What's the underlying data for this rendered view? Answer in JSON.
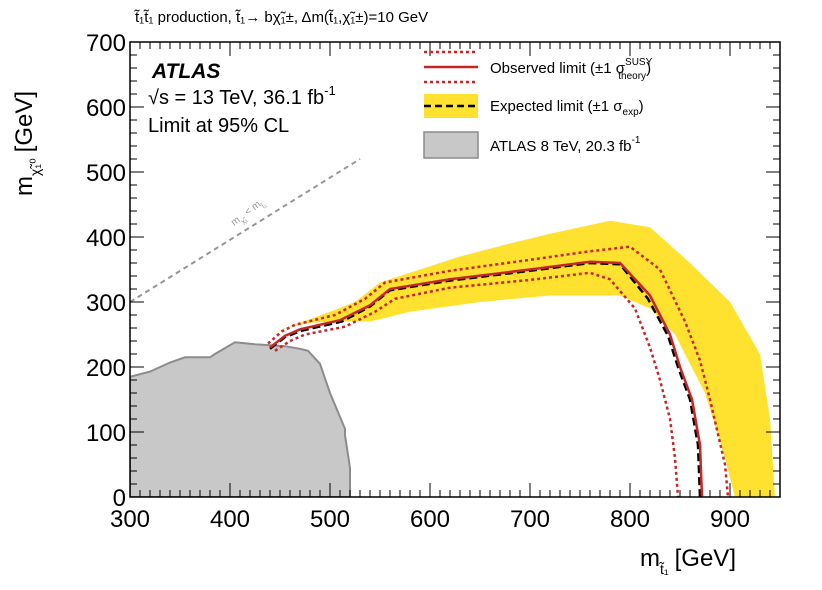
{
  "header": {
    "process_text": "t̃₁t̃₁ production, t̃₁→ bχ̃₁±, Δm(t̃₁,χ̃₁±)=10 GeV"
  },
  "labels": {
    "atlas": "ATLAS",
    "energy": "√s = 13 TeV, 36.1 fb",
    "energy_sup": "-1",
    "cl": "Limit at 95% CL",
    "diagonal": "m",
    "diagonal_rest": " < m",
    "diagonal_sub1": "χ̃₁",
    "diagonal_sub2": "t̃₁"
  },
  "colors": {
    "observed": "#c62626",
    "observed_band": "#c62626",
    "expected": "#000000",
    "expected_band": "#ffe12f",
    "previous_fill": "#c8c8c8",
    "previous_edge": "#8c8c8c",
    "diagonal": "#969696"
  },
  "chart_data": {
    "type": "contour",
    "xlabel": "m",
    "xlabel_sub": "t̃₁",
    "xlabel_unit": "[GeV]",
    "ylabel": "m",
    "ylabel_sub": "χ̃₁⁰",
    "ylabel_unit": "[GeV]",
    "xlim": [
      300,
      950
    ],
    "ylim": [
      0,
      700
    ],
    "xticks": [
      300,
      400,
      500,
      600,
      700,
      800,
      900
    ],
    "yticks": [
      0,
      100,
      200,
      300,
      400,
      500,
      600,
      700
    ],
    "legend": {
      "position": "top-right",
      "entries": [
        {
          "key": "observed",
          "label": "Observed limit (±1 σ",
          "sup": "SUSY",
          "sub": "theory",
          "tail": ")"
        },
        {
          "key": "expected",
          "label": "Expected limit (±1 σ",
          "sub": "exp",
          "tail": ")"
        },
        {
          "key": "previous",
          "label": "ATLAS 8 TeV, 20.3 fb",
          "sup": "-1",
          "tail": ""
        }
      ]
    },
    "diagonal_line": [
      [
        300,
        300
      ],
      [
        530,
        520
      ]
    ],
    "previous_exclusion": [
      [
        300,
        0
      ],
      [
        300,
        185
      ],
      [
        320,
        193
      ],
      [
        340,
        207
      ],
      [
        355,
        215
      ],
      [
        380,
        215
      ],
      [
        385,
        220
      ],
      [
        405,
        238
      ],
      [
        425,
        235
      ],
      [
        455,
        232
      ],
      [
        470,
        228
      ],
      [
        478,
        225
      ],
      [
        490,
        205
      ],
      [
        500,
        160
      ],
      [
        515,
        105
      ],
      [
        515,
        95
      ],
      [
        520,
        45
      ],
      [
        520,
        0
      ]
    ],
    "expected_band": [
      [
        420,
        230
      ],
      [
        440,
        250
      ],
      [
        465,
        265
      ],
      [
        500,
        285
      ],
      [
        525,
        300
      ],
      [
        550,
        330
      ],
      [
        580,
        345
      ],
      [
        630,
        370
      ],
      [
        680,
        390
      ],
      [
        720,
        405
      ],
      [
        780,
        425
      ],
      [
        820,
        415
      ],
      [
        860,
        360
      ],
      [
        900,
        300
      ],
      [
        930,
        220
      ],
      [
        940,
        120
      ],
      [
        945,
        0
      ],
      [
        905,
        0
      ],
      [
        895,
        60
      ],
      [
        875,
        160
      ],
      [
        845,
        250
      ],
      [
        820,
        290
      ],
      [
        790,
        310
      ],
      [
        720,
        310
      ],
      [
        650,
        300
      ],
      [
        580,
        285
      ],
      [
        540,
        270
      ],
      [
        510,
        270
      ],
      [
        480,
        268
      ],
      [
        455,
        260
      ],
      [
        440,
        250
      ]
    ],
    "observed": [
      [
        440,
        230
      ],
      [
        455,
        248
      ],
      [
        470,
        258
      ],
      [
        510,
        272
      ],
      [
        540,
        295
      ],
      [
        560,
        320
      ],
      [
        620,
        335
      ],
      [
        700,
        350
      ],
      [
        760,
        362
      ],
      [
        790,
        360
      ],
      [
        820,
        310
      ],
      [
        840,
        250
      ],
      [
        850,
        200
      ],
      [
        862,
        150
      ],
      [
        870,
        80
      ],
      [
        872,
        0
      ]
    ],
    "observed_up": [
      [
        438,
        236
      ],
      [
        452,
        255
      ],
      [
        465,
        265
      ],
      [
        505,
        280
      ],
      [
        535,
        305
      ],
      [
        555,
        330
      ],
      [
        620,
        348
      ],
      [
        700,
        365
      ],
      [
        760,
        378
      ],
      [
        800,
        385
      ],
      [
        830,
        350
      ],
      [
        855,
        270
      ],
      [
        870,
        210
      ],
      [
        880,
        150
      ],
      [
        895,
        50
      ],
      [
        898,
        0
      ]
    ],
    "observed_down": [
      [
        445,
        225
      ],
      [
        460,
        240
      ],
      [
        475,
        250
      ],
      [
        515,
        262
      ],
      [
        545,
        285
      ],
      [
        565,
        305
      ],
      [
        620,
        322
      ],
      [
        700,
        334
      ],
      [
        760,
        345
      ],
      [
        780,
        335
      ],
      [
        805,
        290
      ],
      [
        820,
        230
      ],
      [
        830,
        180
      ],
      [
        840,
        120
      ],
      [
        845,
        60
      ],
      [
        848,
        0
      ]
    ],
    "expected": [
      [
        440,
        228
      ],
      [
        455,
        246
      ],
      [
        472,
        256
      ],
      [
        512,
        270
      ],
      [
        540,
        293
      ],
      [
        560,
        318
      ],
      [
        620,
        333
      ],
      [
        700,
        348
      ],
      [
        760,
        360
      ],
      [
        790,
        358
      ],
      [
        818,
        305
      ],
      [
        838,
        248
      ],
      [
        848,
        200
      ],
      [
        860,
        150
      ],
      [
        868,
        80
      ],
      [
        870,
        0
      ]
    ]
  }
}
